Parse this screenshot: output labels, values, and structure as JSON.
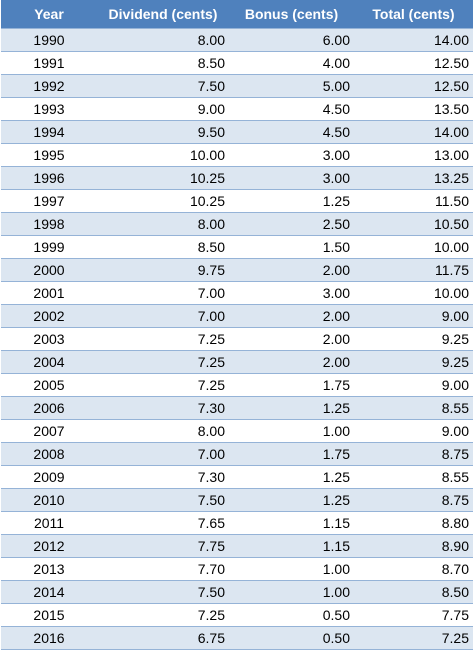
{
  "table": {
    "header": [
      "Year",
      "Dividend (cents)",
      "Bonus (cents)",
      "Total (cents)"
    ],
    "rows": [
      [
        "1990",
        "8.00",
        "6.00",
        "14.00"
      ],
      [
        "1991",
        "8.50",
        "4.00",
        "12.50"
      ],
      [
        "1992",
        "7.50",
        "5.00",
        "12.50"
      ],
      [
        "1993",
        "9.00",
        "4.50",
        "13.50"
      ],
      [
        "1994",
        "9.50",
        "4.50",
        "14.00"
      ],
      [
        "1995",
        "10.00",
        "3.00",
        "13.00"
      ],
      [
        "1996",
        "10.25",
        "3.00",
        "13.25"
      ],
      [
        "1997",
        "10.25",
        "1.25",
        "11.50"
      ],
      [
        "1998",
        "8.00",
        "2.50",
        "10.50"
      ],
      [
        "1999",
        "8.50",
        "1.50",
        "10.00"
      ],
      [
        "2000",
        "9.75",
        "2.00",
        "11.75"
      ],
      [
        "2001",
        "7.00",
        "3.00",
        "10.00"
      ],
      [
        "2002",
        "7.00",
        "2.00",
        "9.00"
      ],
      [
        "2003",
        "7.25",
        "2.00",
        "9.25"
      ],
      [
        "2004",
        "7.25",
        "2.00",
        "9.25"
      ],
      [
        "2005",
        "7.25",
        "1.75",
        "9.00"
      ],
      [
        "2006",
        "7.30",
        "1.25",
        "8.55"
      ],
      [
        "2007",
        "8.00",
        "1.00",
        "9.00"
      ],
      [
        "2008",
        "7.00",
        "1.75",
        "8.75"
      ],
      [
        "2009",
        "7.30",
        "1.25",
        "8.55"
      ],
      [
        "2010",
        "7.50",
        "1.25",
        "8.75"
      ],
      [
        "2011",
        "7.65",
        "1.15",
        "8.80"
      ],
      [
        "2012",
        "7.75",
        "1.15",
        "8.90"
      ],
      [
        "2013",
        "7.70",
        "1.00",
        "8.70"
      ],
      [
        "2014",
        "7.50",
        "1.00",
        "8.50"
      ],
      [
        "2015",
        "7.25",
        "0.50",
        "7.75"
      ],
      [
        "2016",
        "6.75",
        "0.50",
        "7.25"
      ]
    ]
  }
}
